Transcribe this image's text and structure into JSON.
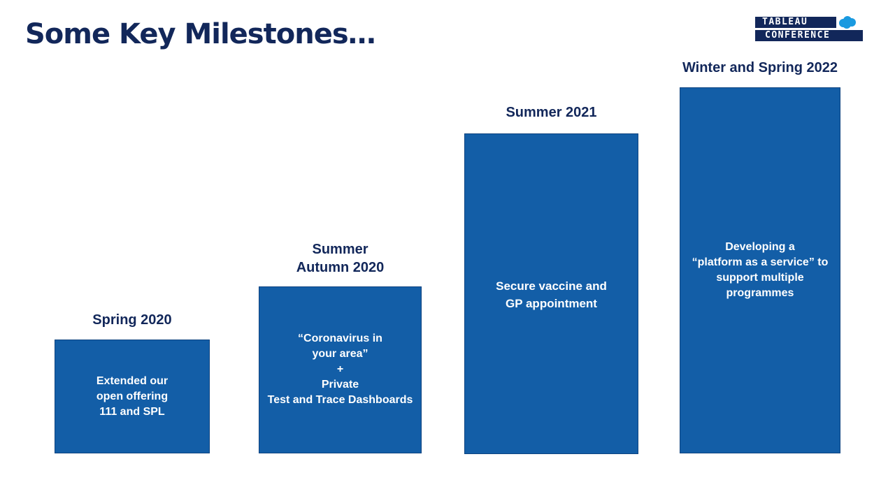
{
  "slide": {
    "title": "Some Key Milestones…"
  },
  "logo": {
    "line1": "TABLEAU",
    "line2": "CONFERENCE",
    "cloud_icon": "salesforce-cloud-icon",
    "colors": {
      "navy": "#12275a",
      "cloud": "#1a9ae0"
    }
  },
  "milestones": [
    {
      "period": "Spring 2020",
      "text": "Extended our\nopen offering\n111 and SPL"
    },
    {
      "period": "Summer\nAutumn 2020",
      "text": "“Coronavirus in\nyour area”\n+\nPrivate\nTest and Trace Dashboards"
    },
    {
      "period": "Summer 2021",
      "text": "Secure vaccine and\nGP appointment"
    },
    {
      "period": "Winter and Spring 2022",
      "text": "Developing a\n“platform as a service” to\nsupport multiple\nprogrammes"
    }
  ],
  "colors": {
    "title": "#12275a",
    "box_fill": "#135ea7",
    "box_text": "#ffffff"
  }
}
